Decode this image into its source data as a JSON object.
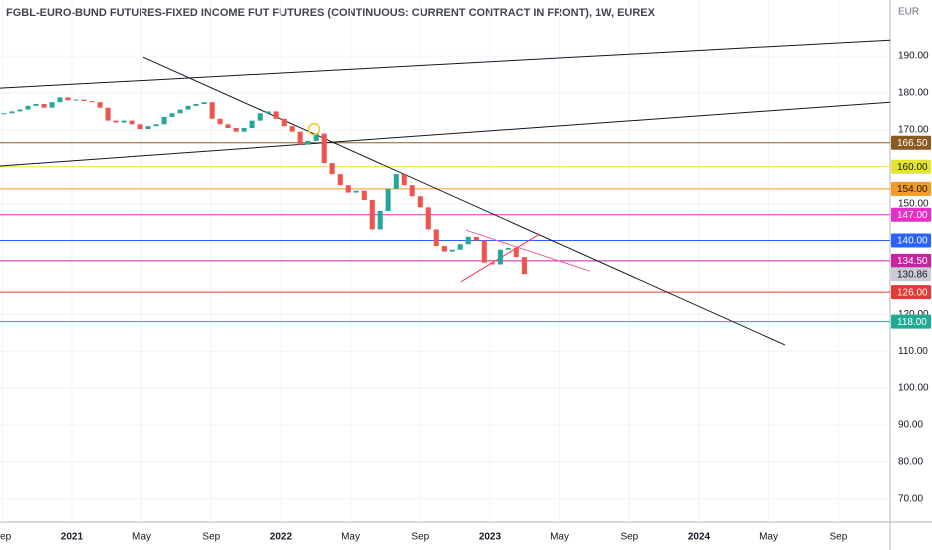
{
  "chart_data": {
    "type": "candlestick",
    "title": "FGBL-EURO-BUND FUTURES-FIXED INCOME FUT FUTURES (CONTINUOUS: CURRENT CONTRACT IN FRONT), 1W, EUREX",
    "currency": "EUR",
    "x": [
      2020.675,
      2020.713,
      2020.752,
      2020.79,
      2020.828,
      2020.867,
      2020.905,
      2020.943,
      2020.981,
      2021.02,
      2021.058,
      2021.096,
      2021.135,
      2021.173,
      2021.211,
      2021.25,
      2021.288,
      2021.326,
      2021.364,
      2021.403,
      2021.441,
      2021.479,
      2021.518,
      2021.556,
      2021.594,
      2021.633,
      2021.671,
      2021.709,
      2021.747,
      2021.786,
      2021.824,
      2021.862,
      2021.901,
      2021.939,
      2021.977,
      2022.016,
      2022.054,
      2022.092,
      2022.13,
      2022.169,
      2022.207,
      2022.245,
      2022.284,
      2022.322,
      2022.36,
      2022.399,
      2022.437,
      2022.475,
      2022.513,
      2022.552,
      2022.59,
      2022.628,
      2022.667,
      2022.705,
      2022.743,
      2022.782,
      2022.82,
      2022.858,
      2022.896,
      2022.935,
      2022.973,
      2023.011,
      2023.05,
      2023.088,
      2023.126,
      2023.165
    ],
    "series": [
      {
        "values": [
          174.5,
          175,
          175.5,
          176.5,
          177,
          176,
          177.5,
          178.8,
          178,
          178.2,
          177.8,
          177.5,
          176,
          172.5,
          172,
          172.5,
          171.5,
          170.2,
          171,
          171.5,
          173.5,
          174.5,
          175.5,
          176.5,
          177,
          177.5,
          173,
          171.5,
          170.5,
          169.5,
          170.5,
          172.5,
          174.5,
          175,
          173,
          171,
          169.5,
          166,
          167,
          169,
          161,
          158,
          155,
          153,
          153.5,
          151,
          143,
          148,
          154,
          158,
          155,
          152,
          149,
          143,
          138.5,
          137,
          137.5,
          139,
          141,
          140,
          134,
          133.5,
          137.5,
          138,
          135.5,
          130.86
        ],
        "up_color": "#26a69a",
        "down_color": "#ef5350"
      }
    ],
    "current_price_label": "130.86",
    "xlim": [
      2020.656,
      2024.914
    ],
    "ylim": [
      63.7,
      205.2
    ],
    "xticks": [
      {
        "value": 2020.667,
        "label": "Sep"
      },
      2021,
      {
        "value": 2021.333,
        "label": "May"
      },
      {
        "value": 2021.667,
        "label": "Sep"
      },
      2022,
      {
        "value": 2022.333,
        "label": "May"
      },
      {
        "value": 2022.667,
        "label": "Sep"
      },
      2023,
      {
        "value": 2023.333,
        "label": "May"
      },
      {
        "value": 2023.667,
        "label": "Sep"
      },
      2024,
      {
        "value": 2024.333,
        "label": "May"
      },
      {
        "value": 2024.667,
        "label": "Sep"
      }
    ],
    "yticks": [
      {
        "value": 190,
        "label": "190.00"
      },
      {
        "value": 180,
        "label": "180.00"
      },
      {
        "value": 170,
        "label": "170.00"
      },
      {
        "value": 150,
        "label": "150.00"
      },
      {
        "value": 120,
        "label": "120.00"
      },
      {
        "value": 110,
        "label": "110.00"
      },
      {
        "value": 100,
        "label": "100.00"
      },
      {
        "value": 90,
        "label": "90.00"
      },
      {
        "value": 80,
        "label": "80.00"
      },
      {
        "value": 70,
        "label": "70.00"
      }
    ],
    "grid": true,
    "levels": [
      {
        "value": 166.5,
        "label": "166.50",
        "color": "#8b5a1e",
        "text_color": "#ffffff"
      },
      {
        "value": 160,
        "label": "160.00",
        "color": "#e6e32e",
        "text_color": "#131722"
      },
      {
        "value": 154,
        "label": "154.00",
        "color": "#f59a23",
        "text_color": "#131722"
      },
      {
        "value": 147,
        "label": "147.00",
        "color": "#e62ec8",
        "text_color": "#ffffff"
      },
      {
        "value": 140,
        "label": "140.00",
        "color": "#2962ff",
        "text_color": "#ffffff"
      },
      {
        "value": 134.5,
        "label": "134.50",
        "color": "#c8239e",
        "text_color": "#ffffff"
      },
      {
        "value": 126,
        "label": "126.00",
        "color": "#e53935",
        "text_color": "#ffffff"
      },
      {
        "value": 118,
        "label": "118.00",
        "color": "#22ab94",
        "text_color": "#ffffff"
      }
    ],
    "trend_lines": [
      {
        "x": [
          2020.656,
          2024.914
        ],
        "y": [
          181.3,
          194.3
        ],
        "color": "#131722"
      },
      {
        "x": [
          2020.656,
          2024.914
        ],
        "y": [
          160.2,
          177.5
        ],
        "color": "#131722"
      },
      {
        "x": [
          2021.34,
          2024.411
        ],
        "y": [
          189.7,
          111.7
        ],
        "color": "#131722"
      },
      {
        "x": [
          2022.885,
          2023.478
        ],
        "y": [
          142.8,
          131.7
        ],
        "color": "#f06292"
      },
      {
        "x": [
          2022.861,
          2023.239
        ],
        "y": [
          128.8,
          141.8
        ],
        "color": "#f23645"
      }
    ],
    "marker": {
      "x": 2022.158,
      "y": 170.2,
      "color": "#f5c518"
    }
  }
}
